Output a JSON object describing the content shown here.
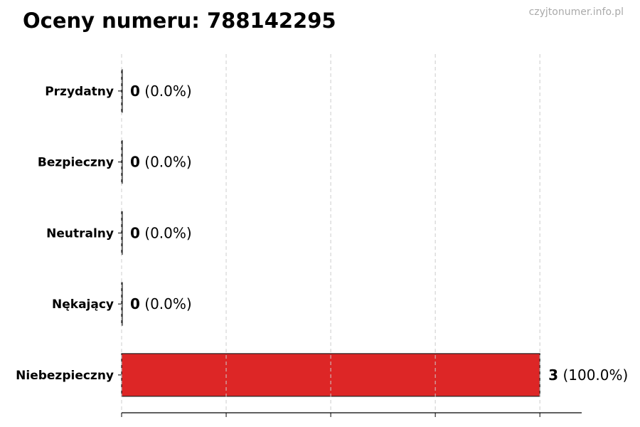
{
  "chart_data": {
    "type": "bar",
    "orientation": "horizontal",
    "title": "Oceny numeru: 788142295",
    "watermark": "czyjtonumer.info.pl",
    "categories": [
      "Przydatny",
      "Bezpieczny",
      "Neutralny",
      "Nękający",
      "Niebezpieczny"
    ],
    "values": [
      0,
      0,
      0,
      0,
      3
    ],
    "data_labels": [
      "(0.0%)",
      "(0.0%)",
      "(0.0%)",
      "(0.0%)",
      "(100.0%)"
    ],
    "colors": [
      "#dd2626",
      "#dd2626",
      "#dd2626",
      "#dd2626",
      "#dd2626"
    ],
    "xlim": [
      0,
      3.3
    ],
    "xticks": [
      0,
      0.75,
      1.5,
      2.25,
      3
    ],
    "xtick_labels_shown": false,
    "grid": "vertical dashed",
    "xlabel": "",
    "ylabel": ""
  }
}
